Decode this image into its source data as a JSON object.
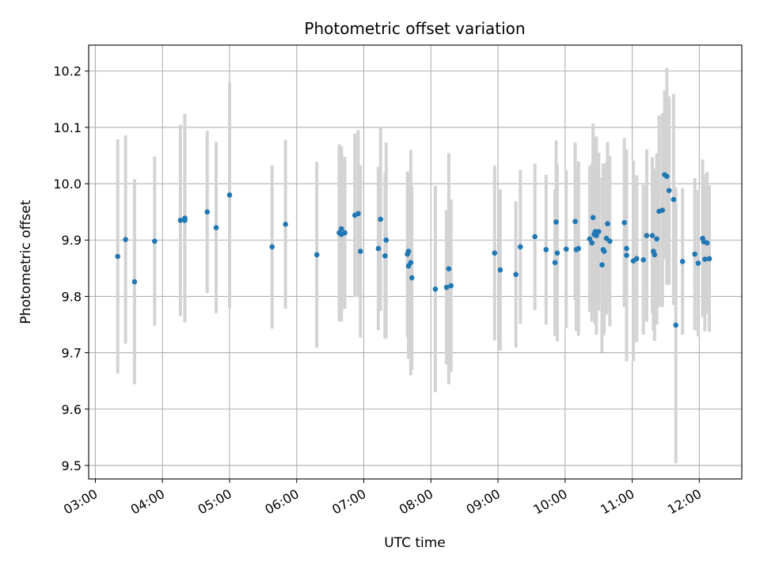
{
  "chart_data": {
    "type": "scatter",
    "title": "Photometric offset variation",
    "xlabel": "UTC time",
    "ylabel": "Photometric offset",
    "x_tick_labels": [
      "03:00",
      "04:00",
      "05:00",
      "06:00",
      "07:00",
      "08:00",
      "09:00",
      "10:00",
      "11:00",
      "12:00"
    ],
    "y_tick_labels": [
      "9.5",
      "9.6",
      "9.7",
      "9.8",
      "9.9",
      "10.0",
      "10.1",
      "10.2"
    ],
    "y_ticks": [
      9.5,
      9.6,
      9.7,
      9.8,
      9.9,
      10.0,
      10.1,
      10.2
    ],
    "xlim": [
      "02:54",
      "12:38"
    ],
    "ylim": [
      9.476,
      10.246
    ],
    "grid": true,
    "colors": {
      "point": "#1f77b4",
      "errorbar": "#d3d3d3",
      "grid": "#b0b0b0"
    },
    "series": [
      {
        "x": [
          "03:20",
          "03:27",
          "03:35",
          "03:53",
          "04:16",
          "04:20",
          "04:20",
          "04:40",
          "04:48",
          "05:00",
          "05:38",
          "05:50",
          "06:18",
          "06:38",
          "06:40",
          "06:40",
          "06:43",
          "06:52",
          "06:55",
          "06:57",
          "07:13",
          "07:15",
          "07:19",
          "07:20",
          "07:39",
          "07:40",
          "07:40",
          "07:42",
          "07:43",
          "08:04",
          "08:14",
          "08:16",
          "08:18",
          "08:57",
          "09:02",
          "09:16",
          "09:20",
          "09:33",
          "09:43",
          "09:51",
          "09:52",
          "09:53",
          "10:01",
          "10:09",
          "10:10",
          "10:12",
          "10:22",
          "10:24",
          "10:25",
          "10:26",
          "10:27",
          "10:28",
          "10:30",
          "10:33",
          "10:34",
          "10:35",
          "10:37",
          "10:38",
          "10:40",
          "10:53",
          "10:55",
          "10:55",
          "11:01",
          "11:04",
          "11:10",
          "11:13",
          "11:18",
          "11:19",
          "11:20",
          "11:22",
          "11:24",
          "11:27",
          "11:29",
          "11:31",
          "11:33",
          "11:37",
          "11:39",
          "11:45",
          "11:56",
          "11:59",
          "12:03",
          "12:04",
          "12:05",
          "12:07",
          "12:09"
        ],
        "y": [
          9.871,
          9.901,
          9.826,
          9.898,
          9.935,
          9.939,
          9.935,
          9.95,
          9.922,
          9.98,
          9.888,
          9.928,
          9.874,
          9.913,
          9.92,
          9.91,
          9.913,
          9.944,
          9.947,
          9.88,
          9.885,
          9.937,
          9.872,
          9.9,
          9.875,
          9.88,
          9.854,
          9.86,
          9.833,
          9.813,
          9.816,
          9.849,
          9.819,
          9.877,
          9.847,
          9.839,
          9.888,
          9.906,
          9.883,
          9.86,
          9.932,
          9.877,
          9.884,
          9.933,
          9.883,
          9.885,
          9.902,
          9.895,
          9.94,
          9.91,
          9.915,
          9.908,
          9.915,
          9.856,
          9.883,
          9.88,
          9.903,
          9.929,
          9.898,
          9.931,
          9.885,
          9.873,
          9.863,
          9.867,
          9.865,
          9.908,
          9.908,
          9.88,
          9.874,
          9.902,
          9.951,
          9.953,
          10.016,
          10.013,
          9.988,
          9.972,
          9.749,
          9.862,
          9.875,
          9.859,
          9.903,
          9.897,
          9.866,
          9.895,
          9.867
        ],
        "err": [
          0.208,
          0.185,
          0.182,
          0.15,
          0.17,
          0.185,
          0.17,
          0.144,
          0.152,
          0.2,
          0.145,
          0.15,
          0.165,
          0.157,
          0.147,
          0.155,
          0.135,
          0.145,
          0.148,
          0.153,
          0.145,
          0.163,
          0.147,
          0.173,
          0.147,
          0.14,
          0.165,
          0.2,
          0.163,
          0.183,
          0.137,
          0.205,
          0.153,
          0.155,
          0.143,
          0.13,
          0.137,
          0.13,
          0.133,
          0.13,
          0.145,
          0.157,
          0.14,
          0.14,
          0.145,
          0.155,
          0.13,
          0.14,
          0.167,
          0.14,
          0.165,
          0.176,
          0.14,
          0.155,
          0.153,
          0.145,
          0.135,
          0.145,
          0.151,
          0.15,
          0.163,
          0.188,
          0.178,
          0.148,
          0.133,
          0.153,
          0.139,
          0.141,
          0.153,
          0.152,
          0.17,
          0.172,
          0.15,
          0.193,
          0.167,
          0.187,
          0.245,
          0.13,
          0.135,
          0.13,
          0.14,
          0.12,
          0.128,
          0.126,
          0.13
        ]
      }
    ]
  }
}
